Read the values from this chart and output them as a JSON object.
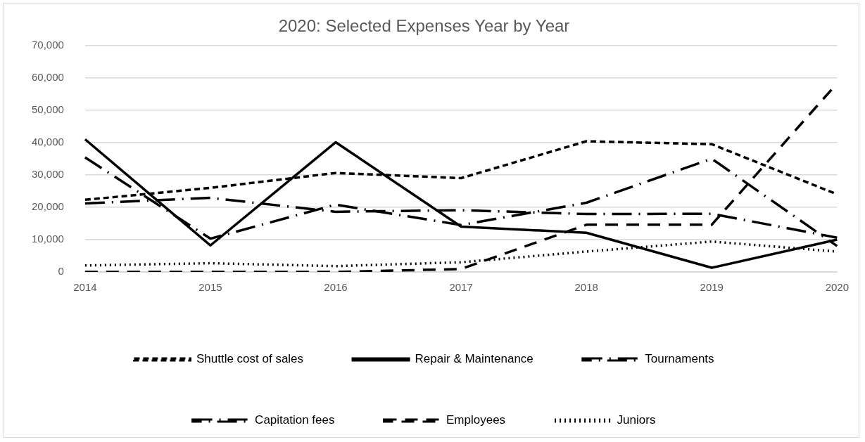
{
  "chart_data": {
    "type": "line",
    "title": "2020: Selected Expenses Year by Year",
    "categories": [
      "2014",
      "2015",
      "2016",
      "2017",
      "2018",
      "2019",
      "2020"
    ],
    "series": [
      {
        "name": "Shuttle cost of sales",
        "color": "#000000",
        "line_style": "dashed",
        "values": [
          22300,
          26000,
          30600,
          29000,
          40400,
          39500,
          24000
        ]
      },
      {
        "name": "Repair & Maintenance",
        "color": "#000000",
        "line_style": "solid",
        "values": [
          41000,
          8200,
          40100,
          14000,
          12100,
          1300,
          10000
        ]
      },
      {
        "name": "Tournaments",
        "color": "#000000",
        "line_style": "dashed",
        "values": [
          35400,
          10300,
          20800,
          14500,
          21400,
          35000,
          8000
        ]
      },
      {
        "name": "Capitation fees",
        "color": "#000000",
        "line_style": "dashed",
        "values": [
          21200,
          22900,
          18600,
          19100,
          17900,
          18000,
          10600
        ]
      },
      {
        "name": "Employees",
        "color": "#000000",
        "line_style": "dashed",
        "values": [
          0,
          0,
          0,
          900,
          14600,
          14600,
          58300
        ]
      },
      {
        "name": "Juniors",
        "color": "#000000",
        "line_style": "dotted",
        "values": [
          2000,
          2700,
          1800,
          3000,
          6300,
          9400,
          6300
        ]
      }
    ],
    "ylim": [
      0,
      70000
    ],
    "yticks": [
      0,
      {
        "value": 10000,
        "label": "10,000"
      },
      {
        "value": 20000,
        "label": "20,000"
      },
      {
        "value": 30000,
        "label": "30,000"
      },
      {
        "value": 40000,
        "label": "40,000"
      },
      {
        "value": 50000,
        "label": "50,000"
      },
      {
        "value": 60000,
        "label": "60,000"
      },
      {
        "value": 70000,
        "label": "70,000"
      }
    ],
    "grid": "y",
    "legend": "bottom",
    "marker": "none"
  }
}
